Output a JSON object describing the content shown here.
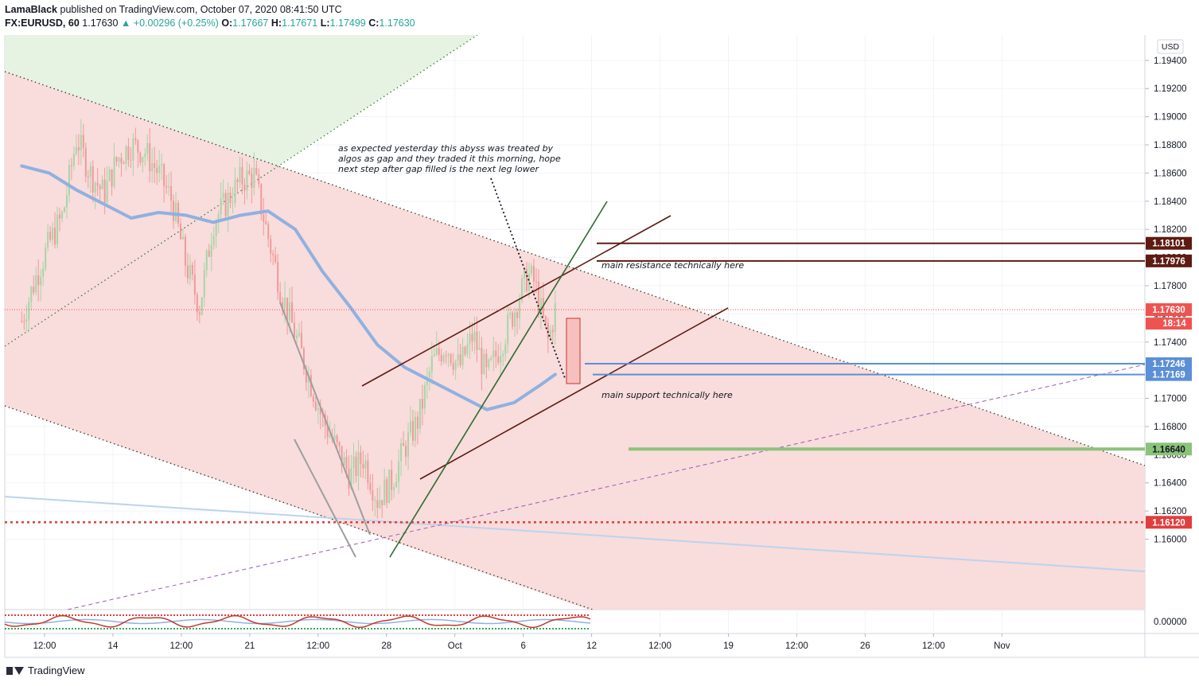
{
  "header": {
    "author": "LamaBlack",
    "published_text": "published on TradingView.com, October 07, 2020 08:41:50 UTC",
    "symbol": "FX:EURUSD, 60",
    "last": "1.17630",
    "change": "+0.00296 (+0.25%)",
    "o_label": "O:",
    "o": "1.17667",
    "h_label": "H:",
    "h": "1.17671",
    "l_label": "L:",
    "l": "1.17499",
    "c_label": "C:",
    "c": "1.17630"
  },
  "axis": {
    "currency": "USD",
    "countdown": "18:14"
  },
  "annotations": {
    "note": [
      "as expected yesterday this abyss was treated by",
      "algos as gap and they traded it this morning, hope",
      "next step after gap filled is the next leg lower"
    ],
    "resistance": "main resistance technically here",
    "support": "main support technically here"
  },
  "footer": {
    "brand": "TradingView"
  },
  "colors": {
    "up": "#26a69a",
    "down": "#ef5350",
    "resistance": "#5d1b12",
    "support": "#5b8fd6",
    "target": "#8bc37a",
    "low": "#e03e3e",
    "ma": "#8fb1e0",
    "zone_red": "#f9dcdc",
    "zone_green": "#e6f2e2"
  },
  "chart_data": {
    "type": "line",
    "ylim": [
      1.155,
      1.1958
    ],
    "y_ticks": [
      1.194,
      1.192,
      1.19,
      1.188,
      1.186,
      1.184,
      1.182,
      1.18,
      1.178,
      1.176,
      1.174,
      1.172,
      1.17,
      1.168,
      1.166,
      1.164,
      1.162,
      1.16
    ],
    "y_tick_labels": [
      "1.19400",
      "1.19200",
      "1.19000",
      "1.18800",
      "1.18600",
      "1.18400",
      "1.18200",
      "1.18000",
      "1.17800",
      "1.17600",
      "1.17400",
      "1.17200",
      "1.17000",
      "1.16800",
      "1.16600",
      "1.16400",
      "1.16200",
      "1.16000"
    ],
    "x_tick_labels": [
      "12:00",
      "14",
      "12:00",
      "21",
      "12:00",
      "28",
      "Oct",
      "6",
      "12",
      "12:00",
      "19",
      "12:00",
      "26",
      "12:00",
      "Nov"
    ],
    "x_ticks": [
      3.5,
      5,
      6.5,
      8,
      9.5,
      11,
      12.5,
      14,
      15.5,
      17,
      18.5,
      20,
      21.5,
      23,
      24.5
    ],
    "levels": [
      {
        "name": "resistance-1",
        "value": 1.18101,
        "label": "1.18101"
      },
      {
        "name": "resistance-2",
        "value": 1.17976,
        "label": "1.17976"
      },
      {
        "name": "last-price",
        "value": 1.1763,
        "label": "1.17630"
      },
      {
        "name": "support-1",
        "value": 1.17246,
        "label": "1.17246"
      },
      {
        "name": "support-2",
        "value": 1.17169,
        "label": "1.17169"
      },
      {
        "name": "target",
        "value": 1.1664,
        "label": "1.16640"
      },
      {
        "name": "low",
        "value": 1.1612,
        "label": "1.16120"
      }
    ],
    "oscillator_tick": "0.00000",
    "series": [
      {
        "values": [
          [
            3.0,
            1.1755
          ],
          [
            3.3,
            1.1785
          ],
          [
            3.6,
            1.181
          ],
          [
            3.9,
            1.183
          ],
          [
            4.2,
            1.1885
          ],
          [
            4.5,
            1.186
          ],
          [
            4.8,
            1.1845
          ],
          [
            5.1,
            1.187
          ],
          [
            5.4,
            1.188
          ],
          [
            5.7,
            1.1875
          ],
          [
            6.0,
            1.186
          ],
          [
            6.3,
            1.184
          ],
          [
            6.6,
            1.1795
          ],
          [
            6.9,
            1.1765
          ],
          [
            7.2,
            1.1825
          ],
          [
            7.5,
            1.184
          ],
          [
            7.8,
            1.1855
          ],
          [
            8.1,
            1.1858
          ],
          [
            8.4,
            1.1815
          ],
          [
            8.7,
            1.1775
          ],
          [
            9.0,
            1.1745
          ],
          [
            9.3,
            1.1715
          ],
          [
            9.6,
            1.1685
          ],
          [
            9.9,
            1.1665
          ],
          [
            10.2,
            1.1645
          ],
          [
            10.5,
            1.1658
          ],
          [
            10.8,
            1.1628
          ],
          [
            11.1,
            1.164
          ],
          [
            11.4,
            1.1665
          ],
          [
            11.7,
            1.1685
          ],
          [
            12.0,
            1.1725
          ],
          [
            12.3,
            1.1738
          ],
          [
            12.6,
            1.1722
          ],
          [
            12.9,
            1.1745
          ],
          [
            13.2,
            1.1715
          ],
          [
            13.5,
            1.1738
          ],
          [
            13.8,
            1.1762
          ],
          [
            14.1,
            1.1788
          ],
          [
            14.25,
            1.1782
          ],
          [
            14.4,
            1.176
          ],
          [
            14.55,
            1.174
          ],
          [
            14.7,
            1.1763
          ]
        ]
      },
      {
        "values": [
          [
            3.0,
            1.1865
          ],
          [
            3.6,
            1.186
          ],
          [
            4.2,
            1.1848
          ],
          [
            4.8,
            1.1838
          ],
          [
            5.4,
            1.1828
          ],
          [
            6.0,
            1.1832
          ],
          [
            6.6,
            1.183
          ],
          [
            7.2,
            1.1825
          ],
          [
            7.8,
            1.183
          ],
          [
            8.4,
            1.1833
          ],
          [
            9.0,
            1.182
          ],
          [
            9.6,
            1.179
          ],
          [
            10.2,
            1.1765
          ],
          [
            10.8,
            1.1738
          ],
          [
            11.4,
            1.1722
          ],
          [
            12.0,
            1.1712
          ],
          [
            12.6,
            1.1702
          ],
          [
            13.2,
            1.1692
          ],
          [
            13.8,
            1.1697
          ],
          [
            14.4,
            1.171
          ],
          [
            14.7,
            1.1717
          ]
        ]
      }
    ]
  }
}
